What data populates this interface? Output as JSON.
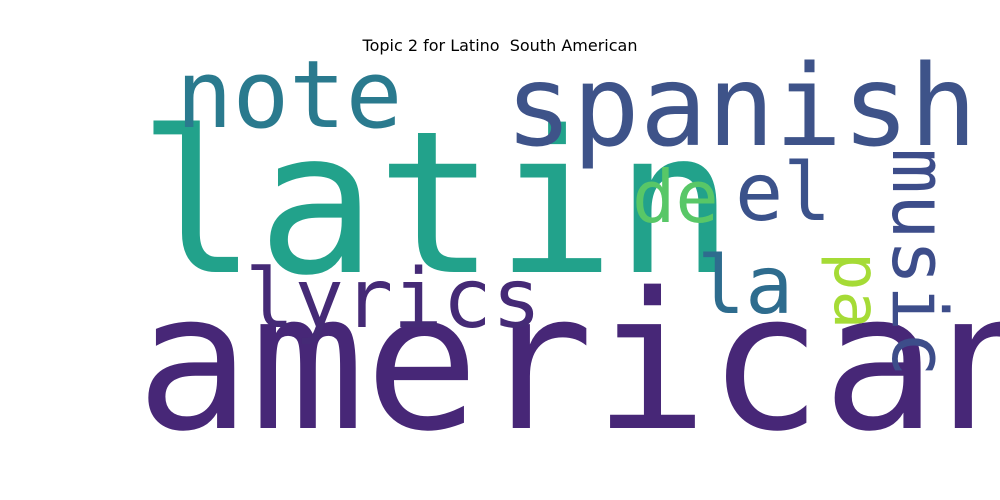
{
  "chart_data": {
    "type": "wordcloud",
    "title": "Topic 2 for Latino  South American",
    "words": [
      {
        "text": "latin",
        "weight": 1.0,
        "color": "#22a28b"
      },
      {
        "text": "american",
        "weight": 0.96,
        "color": "#472777"
      },
      {
        "text": "spanish",
        "weight": 0.57,
        "color": "#3e5389"
      },
      {
        "text": "note",
        "weight": 0.48,
        "color": "#2a7a8e"
      },
      {
        "text": "lyrics",
        "weight": 0.42,
        "color": "#452a76"
      },
      {
        "text": "el",
        "weight": 0.4,
        "color": "#3b528b"
      },
      {
        "text": "la",
        "weight": 0.4,
        "color": "#2e6c8e"
      },
      {
        "text": "music",
        "weight": 0.38,
        "color": "#3d4d8a"
      },
      {
        "text": "de",
        "weight": 0.35,
        "color": "#58c767"
      },
      {
        "text": "pa",
        "weight": 0.3,
        "color": "#a5db36"
      }
    ]
  }
}
